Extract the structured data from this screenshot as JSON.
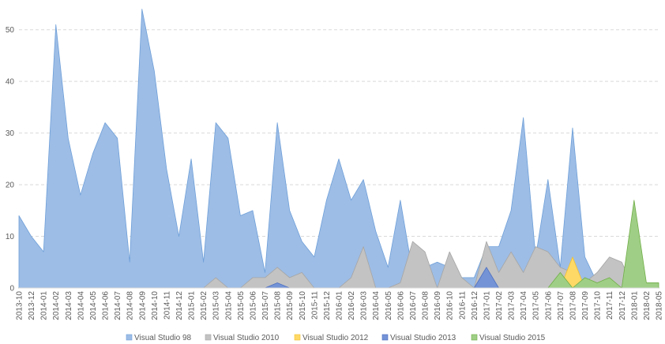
{
  "chart_data": {
    "type": "area",
    "ylim": [
      0,
      55
    ],
    "y_ticks": [
      0,
      10,
      20,
      30,
      40,
      50
    ],
    "grid": "horizontal-dashed",
    "legend_position": "bottom",
    "x": [
      "2013-10",
      "2013-12",
      "2014-01",
      "2014-02",
      "2014-03",
      "2014-04",
      "2014-05",
      "2014-06",
      "2014-07",
      "2014-08",
      "2014-09",
      "2014-10",
      "2014-11",
      "2014-12",
      "2015-01",
      "2015-02",
      "2015-03",
      "2015-04",
      "2015-05",
      "2015-06",
      "2015-07",
      "2015-08",
      "2015-09",
      "2015-10",
      "2015-11",
      "2015-12",
      "2016-01",
      "2016-02",
      "2016-03",
      "2016-04",
      "2016-05",
      "2016-06",
      "2016-07",
      "2016-08",
      "2016-09",
      "2016-10",
      "2016-11",
      "2016-12",
      "2017-01",
      "2017-02",
      "2017-03",
      "2017-04",
      "2017-05",
      "2017-06",
      "2017-07",
      "2017-08",
      "2017-09",
      "2017-10",
      "2017-11",
      "2017-12",
      "2018-01",
      "2018-02",
      "2018-05"
    ],
    "series": [
      {
        "name": "Visual Studio 98",
        "color": "#9dbde6",
        "stroke": "#6e9fd8",
        "values": [
          14,
          10,
          7,
          51,
          29,
          18,
          26,
          32,
          29,
          5,
          54,
          42,
          23,
          10,
          25,
          5,
          32,
          29,
          14,
          15,
          3,
          32,
          15,
          9,
          6,
          17,
          25,
          17,
          21,
          11,
          4,
          17,
          3,
          4,
          5,
          4,
          2,
          2,
          8,
          8,
          15,
          33,
          6,
          21,
          4,
          31,
          6,
          1,
          2,
          0,
          0,
          0,
          0
        ]
      },
      {
        "name": "Visual Studio 2010",
        "color": "#c3c3c3",
        "stroke": "#a5a5a5",
        "values": [
          0,
          0,
          0,
          0,
          0,
          0,
          0,
          0,
          0,
          0,
          0,
          0,
          0,
          0,
          0,
          0,
          2,
          0,
          0,
          2,
          2,
          4,
          2,
          3,
          0,
          0,
          0,
          2,
          8,
          0,
          0,
          1,
          9,
          7,
          0,
          7,
          2,
          0,
          9,
          3,
          7,
          3,
          8,
          7,
          4,
          3,
          1,
          3,
          6,
          5,
          0,
          0,
          0
        ]
      },
      {
        "name": "Visual Studio 2012",
        "color": "#ffd966",
        "stroke": "#f2c12e",
        "values": [
          0,
          0,
          0,
          0,
          0,
          0,
          0,
          0,
          0,
          0,
          0,
          0,
          0,
          0,
          0,
          0,
          0,
          0,
          0,
          0,
          0,
          0,
          0,
          0,
          0,
          0,
          0,
          0,
          0,
          0,
          0,
          0,
          0,
          0,
          0,
          0,
          0,
          0,
          0,
          0,
          0,
          0,
          0,
          0,
          0,
          6,
          0,
          0,
          0,
          0,
          0,
          0,
          0
        ]
      },
      {
        "name": "Visual Studio 2013",
        "color": "#7493d6",
        "stroke": "#4d6fc1",
        "values": [
          0,
          0,
          0,
          0,
          0,
          0,
          0,
          0,
          0,
          0,
          0,
          0,
          0,
          0,
          0,
          0,
          0,
          0,
          0,
          0,
          0,
          1,
          0,
          0,
          0,
          0,
          0,
          0,
          0,
          0,
          0,
          0,
          0,
          0,
          0,
          0,
          0,
          0,
          4,
          0,
          0,
          0,
          0,
          0,
          0,
          0,
          0,
          0,
          0,
          0,
          0,
          0,
          0
        ]
      },
      {
        "name": "Visual Studio 2015",
        "color": "#9fcf86",
        "stroke": "#70ad47",
        "values": [
          0,
          0,
          0,
          0,
          0,
          0,
          0,
          0,
          0,
          0,
          0,
          0,
          0,
          0,
          0,
          0,
          0,
          0,
          0,
          0,
          0,
          0,
          0,
          0,
          0,
          0,
          0,
          0,
          0,
          0,
          0,
          0,
          0,
          0,
          0,
          0,
          0,
          0,
          0,
          0,
          0,
          0,
          0,
          0,
          3,
          0,
          2,
          1,
          2,
          0,
          17,
          1,
          1
        ]
      }
    ]
  }
}
